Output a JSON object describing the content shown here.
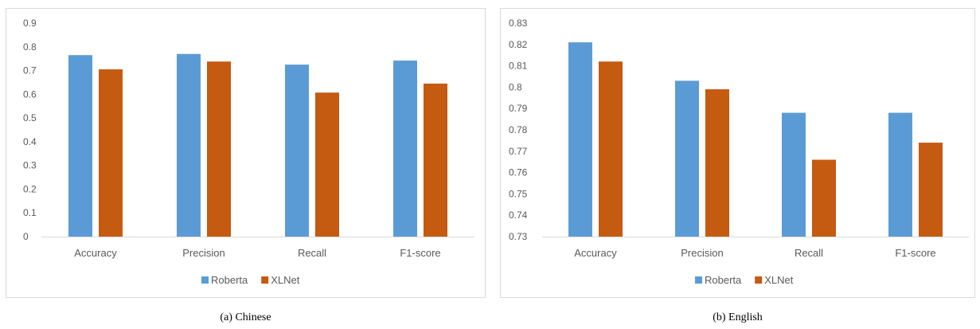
{
  "chart_data": [
    {
      "type": "bar",
      "caption": "(a)  Chinese",
      "categories": [
        "Accuracy",
        "Precision",
        "Recall",
        "F1-score"
      ],
      "series": [
        {
          "name": "Roberta",
          "color": "#5b9bd5",
          "values": [
            0.765,
            0.77,
            0.725,
            0.742
          ]
        },
        {
          "name": "XLNet",
          "color": "#c55a11",
          "values": [
            0.705,
            0.738,
            0.607,
            0.645
          ]
        }
      ],
      "ylim": [
        0,
        0.9
      ],
      "yticks": [
        "0",
        "0.1",
        "0.2",
        "0.3",
        "0.4",
        "0.5",
        "0.6",
        "0.7",
        "0.8",
        "0.9"
      ],
      "grid": false,
      "legend": "bottom"
    },
    {
      "type": "bar",
      "caption": "(b)  English",
      "categories": [
        "Accuracy",
        "Precision",
        "Recall",
        "F1-score"
      ],
      "series": [
        {
          "name": "Roberta",
          "color": "#5b9bd5",
          "values": [
            0.821,
            0.803,
            0.788,
            0.788
          ]
        },
        {
          "name": "XLNet",
          "color": "#c55a11",
          "values": [
            0.812,
            0.799,
            0.766,
            0.774
          ]
        }
      ],
      "ylim": [
        0.73,
        0.83
      ],
      "yticks": [
        "0.73",
        "0.74",
        "0.75",
        "0.76",
        "0.77",
        "0.78",
        "0.79",
        "0.8",
        "0.81",
        "0.82",
        "0.83"
      ],
      "grid": false,
      "legend": "bottom"
    }
  ]
}
